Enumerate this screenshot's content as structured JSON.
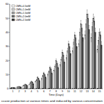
{
  "chart_data": {
    "type": "bar",
    "title": "ccase production at various times and induced by various concentration",
    "x_label": "Time (Days)",
    "categories": [
      1,
      2,
      3,
      4,
      5,
      6,
      7,
      8,
      9,
      10,
      11,
      12,
      13,
      14,
      15
    ],
    "series": [
      {
        "name": "CMN+0.5mM",
        "color": "#ffffff",
        "values": [
          0.5,
          1,
          2,
          3,
          5,
          7,
          10,
          13,
          17,
          22,
          27,
          32,
          38,
          36,
          28
        ],
        "errors": [
          0.2,
          0.3,
          0.4,
          0.5,
          0.6,
          0.8,
          1,
          1.2,
          1.5,
          1.8,
          2,
          2.5,
          3,
          3,
          2.5
        ]
      },
      {
        "name": "CMN+1.0mM",
        "color": "#d9d9d9",
        "values": [
          0.6,
          1.2,
          2.5,
          4,
          6,
          9,
          12,
          16,
          21,
          27,
          33,
          40,
          46,
          44,
          34
        ],
        "errors": [
          0.2,
          0.3,
          0.4,
          0.5,
          0.6,
          0.8,
          1,
          1.2,
          1.5,
          1.8,
          2,
          2.5,
          3,
          3,
          2.5
        ]
      },
      {
        "name": "CMN+1.5mM",
        "color": "#a6a6a6",
        "values": [
          0.8,
          1.5,
          3,
          5,
          8,
          11,
          15,
          20,
          26,
          32,
          38,
          46,
          53,
          50,
          40
        ],
        "errors": [
          0.2,
          0.3,
          0.4,
          0.5,
          0.6,
          0.8,
          1,
          1.2,
          1.5,
          1.8,
          2,
          2.5,
          3,
          3,
          2.5
        ]
      },
      {
        "name": "CMN+2.0mM",
        "color": "#737373",
        "values": [
          0.7,
          1.3,
          2.8,
          4.5,
          7,
          10,
          14,
          18,
          24,
          30,
          36,
          43,
          50,
          48,
          38
        ],
        "errors": [
          0.2,
          0.3,
          0.4,
          0.5,
          0.6,
          0.8,
          1,
          1.2,
          1.5,
          1.8,
          2,
          2.5,
          3,
          3,
          2.5
        ]
      },
      {
        "name": "CMN+2.5mM",
        "color": "#404040",
        "values": [
          0.6,
          1.1,
          2.2,
          3.5,
          5.5,
          8,
          11,
          15,
          19,
          25,
          30,
          36,
          42,
          40,
          31
        ],
        "errors": [
          0.2,
          0.3,
          0.4,
          0.5,
          0.6,
          0.8,
          1,
          1.2,
          1.5,
          1.8,
          2,
          2.5,
          3,
          3,
          2.5
        ]
      }
    ],
    "ylim": [
      0,
      60
    ],
    "yticks": [
      0,
      10,
      20,
      30,
      40,
      50,
      60
    ],
    "legend": "top-left"
  }
}
